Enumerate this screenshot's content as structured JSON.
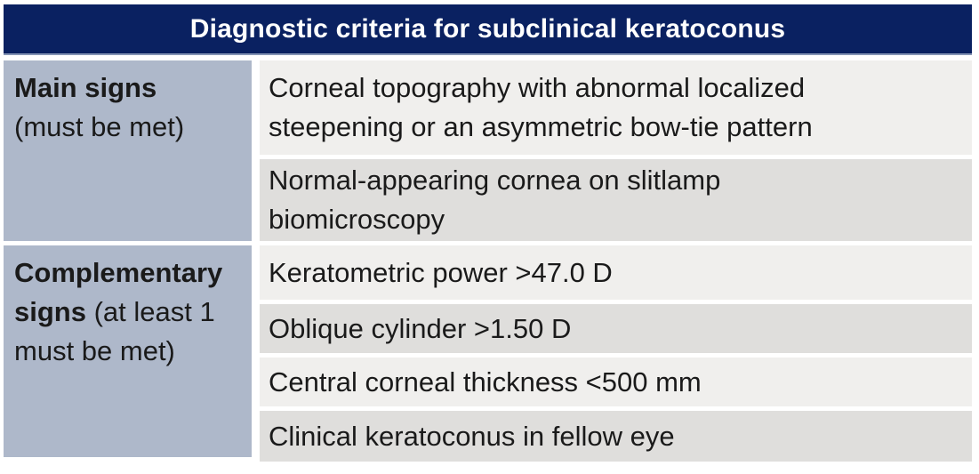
{
  "header": {
    "title": "Diagnostic criteria for subclinical keratoconus"
  },
  "table": {
    "sections": [
      {
        "label_bold": "Main signs",
        "label_note": "(must be met)",
        "criteria": [
          "Corneal topography with abnormal localized\nsteepening or an asymmetric bow-tie pattern",
          "Normal-appearing cornea on slitlamp\nbiomicroscopy"
        ]
      },
      {
        "label_bold": "Complementary signs",
        "label_note": "(at least 1 must be met)",
        "criteria": [
          "Keratometric power >47.0 D",
          "Oblique cylinder >1.50 D",
          "Central corneal thickness <500 mm",
          "Clinical keratoconus in fellow eye"
        ]
      }
    ]
  },
  "colors": {
    "header_bg": "#0a2161",
    "header_edge": "#8494b4",
    "label_bg": "#aeb8ca",
    "row_light": "#f0efed",
    "row_dark": "#dfdedc",
    "text": "#1a1a1a",
    "header_text": "#ffffff"
  }
}
